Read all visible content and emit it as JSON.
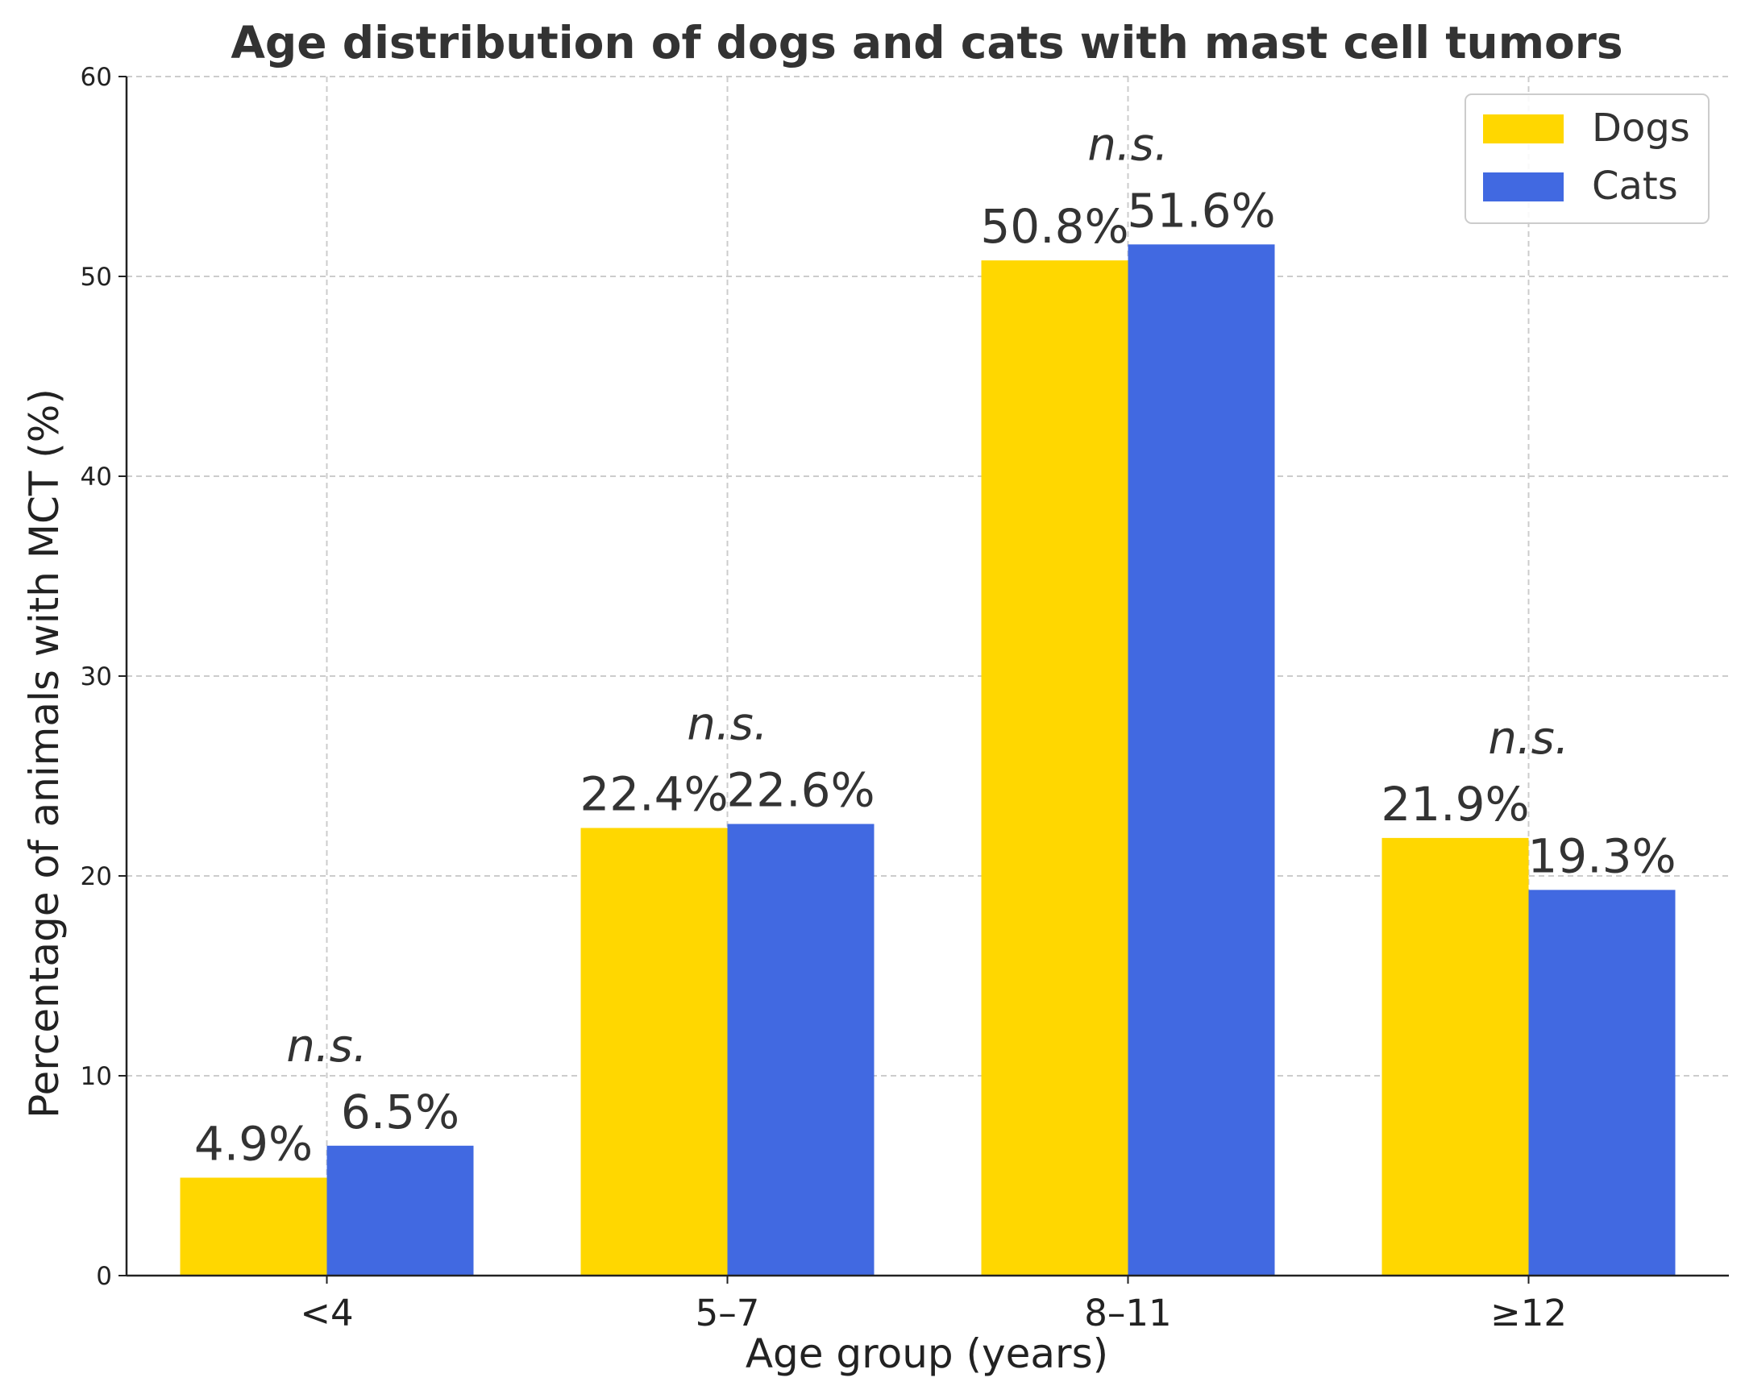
{
  "chart_data": {
    "type": "bar",
    "title": "Age distribution of dogs and cats with mast cell tumors",
    "xlabel": "Age group (years)",
    "ylabel": "Percentage of animals with MCT (%)",
    "categories": [
      "<4",
      "5–7",
      "8–11",
      "≥12"
    ],
    "series": [
      {
        "name": "Dogs",
        "color": "#FFD700",
        "values": [
          4.9,
          22.4,
          50.8,
          21.9
        ],
        "labels": [
          "4.9%",
          "22.4%",
          "50.8%",
          "21.9%"
        ]
      },
      {
        "name": "Cats",
        "color": "#4169E1",
        "values": [
          6.5,
          22.6,
          51.6,
          19.3
        ],
        "labels": [
          "6.5%",
          "22.6%",
          "51.6%",
          "19.3%"
        ]
      }
    ],
    "annotations": [
      "n.s.",
      "n.s.",
      "n.s.",
      "n.s."
    ],
    "ylim": [
      0,
      60
    ],
    "yticks": [
      0,
      10,
      20,
      30,
      40,
      50,
      60
    ],
    "grid": true,
    "legend_position": "top-right"
  }
}
